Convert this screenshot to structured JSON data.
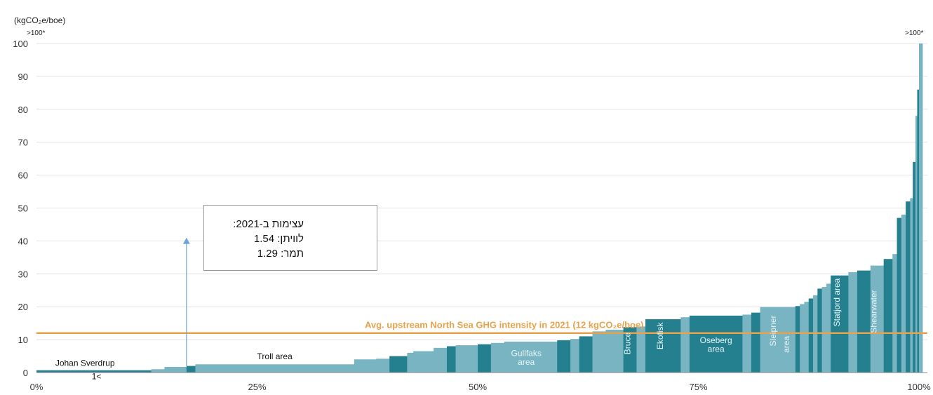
{
  "chart_data": {
    "type": "bar",
    "subtype": "cumulative-production-curve",
    "ylabel": "(kgCO₂e/boe)",
    "ylim": [
      0,
      100
    ],
    "y_ticks": [
      "0",
      "10",
      "20",
      "30",
      "40",
      "50",
      "60",
      "70",
      "80",
      "90",
      "100"
    ],
    "xlim": [
      0,
      100
    ],
    "x_ticks": [
      {
        "value": 0,
        "label": "0%"
      },
      {
        "value": 25,
        "label": "25%"
      },
      {
        "value": 50,
        "label": "50%"
      },
      {
        "value": 75,
        "label": "75%"
      },
      {
        "value": 100,
        "label": "100%"
      }
    ],
    "grid": true,
    "colors": {
      "light": "#79b4c3",
      "dark": "#24808f",
      "avg_line": "#e8a24a",
      "grid": "#e4e4e4",
      "arrow": "#6fa5d6"
    },
    "bars": [
      {
        "x0": 0.0,
        "x1": 13.0,
        "y": 0.7,
        "shade": "dark"
      },
      {
        "x0": 13.0,
        "x1": 14.5,
        "y": 1.0,
        "shade": "light"
      },
      {
        "x0": 14.5,
        "x1": 17.0,
        "y": 1.7,
        "shade": "light"
      },
      {
        "x0": 17.0,
        "x1": 18.0,
        "y": 2.0,
        "shade": "dark"
      },
      {
        "x0": 18.0,
        "x1": 36.0,
        "y": 2.5,
        "shade": "light"
      },
      {
        "x0": 36.0,
        "x1": 38.5,
        "y": 4.0,
        "shade": "light"
      },
      {
        "x0": 38.5,
        "x1": 40.0,
        "y": 4.2,
        "shade": "light"
      },
      {
        "x0": 40.0,
        "x1": 42.0,
        "y": 5.0,
        "shade": "dark"
      },
      {
        "x0": 42.0,
        "x1": 42.7,
        "y": 6.0,
        "shade": "light"
      },
      {
        "x0": 42.7,
        "x1": 45.0,
        "y": 6.5,
        "shade": "light"
      },
      {
        "x0": 45.0,
        "x1": 46.5,
        "y": 7.5,
        "shade": "light"
      },
      {
        "x0": 46.5,
        "x1": 47.5,
        "y": 8.0,
        "shade": "dark"
      },
      {
        "x0": 47.5,
        "x1": 50.0,
        "y": 8.3,
        "shade": "light"
      },
      {
        "x0": 50.0,
        "x1": 51.5,
        "y": 8.6,
        "shade": "dark"
      },
      {
        "x0": 51.5,
        "x1": 53.0,
        "y": 9.0,
        "shade": "light"
      },
      {
        "x0": 53.0,
        "x1": 59.0,
        "y": 9.4,
        "shade": "light"
      },
      {
        "x0": 59.0,
        "x1": 60.5,
        "y": 9.8,
        "shade": "dark"
      },
      {
        "x0": 60.5,
        "x1": 61.5,
        "y": 10.2,
        "shade": "light"
      },
      {
        "x0": 61.5,
        "x1": 63.0,
        "y": 11.0,
        "shade": "dark"
      },
      {
        "x0": 63.0,
        "x1": 64.5,
        "y": 12.5,
        "shade": "light"
      },
      {
        "x0": 64.5,
        "x1": 66.5,
        "y": 13.0,
        "shade": "light"
      },
      {
        "x0": 66.5,
        "x1": 68.0,
        "y": 13.8,
        "shade": "dark"
      },
      {
        "x0": 68.0,
        "x1": 69.0,
        "y": 14.0,
        "shade": "light"
      },
      {
        "x0": 69.0,
        "x1": 73.0,
        "y": 16.2,
        "shade": "dark"
      },
      {
        "x0": 73.0,
        "x1": 74.0,
        "y": 16.8,
        "shade": "light"
      },
      {
        "x0": 74.0,
        "x1": 80.0,
        "y": 17.3,
        "shade": "dark"
      },
      {
        "x0": 80.0,
        "x1": 81.0,
        "y": 17.6,
        "shade": "light"
      },
      {
        "x0": 81.0,
        "x1": 82.0,
        "y": 18.2,
        "shade": "dark"
      },
      {
        "x0": 82.0,
        "x1": 86.0,
        "y": 19.9,
        "shade": "light"
      },
      {
        "x0": 86.0,
        "x1": 86.5,
        "y": 20.2,
        "shade": "dark"
      },
      {
        "x0": 86.5,
        "x1": 87.0,
        "y": 20.8,
        "shade": "light"
      },
      {
        "x0": 87.0,
        "x1": 87.5,
        "y": 21.5,
        "shade": "light"
      },
      {
        "x0": 87.5,
        "x1": 88.0,
        "y": 22.5,
        "shade": "dark"
      },
      {
        "x0": 88.0,
        "x1": 88.5,
        "y": 23.5,
        "shade": "light"
      },
      {
        "x0": 88.5,
        "x1": 89.0,
        "y": 25.5,
        "shade": "dark"
      },
      {
        "x0": 89.0,
        "x1": 89.5,
        "y": 26.0,
        "shade": "light"
      },
      {
        "x0": 89.5,
        "x1": 90.0,
        "y": 27.0,
        "shade": "light"
      },
      {
        "x0": 90.0,
        "x1": 92.0,
        "y": 29.5,
        "shade": "dark"
      },
      {
        "x0": 92.0,
        "x1": 93.0,
        "y": 30.5,
        "shade": "light"
      },
      {
        "x0": 93.0,
        "x1": 94.5,
        "y": 31.0,
        "shade": "dark"
      },
      {
        "x0": 94.5,
        "x1": 96.0,
        "y": 32.5,
        "shade": "light"
      },
      {
        "x0": 96.0,
        "x1": 97.0,
        "y": 34.5,
        "shade": "dark"
      },
      {
        "x0": 97.0,
        "x1": 97.5,
        "y": 36.0,
        "shade": "light"
      },
      {
        "x0": 97.5,
        "x1": 98.0,
        "y": 47.0,
        "shade": "dark"
      },
      {
        "x0": 98.0,
        "x1": 98.5,
        "y": 48.0,
        "shade": "light"
      },
      {
        "x0": 98.5,
        "x1": 99.0,
        "y": 52.0,
        "shade": "dark"
      },
      {
        "x0": 99.0,
        "x1": 99.3,
        "y": 53.0,
        "shade": "light"
      },
      {
        "x0": 99.3,
        "x1": 99.6,
        "y": 64.0,
        "shade": "dark"
      },
      {
        "x0": 99.6,
        "x1": 99.8,
        "y": 78.0,
        "shade": "light"
      },
      {
        "x0": 99.8,
        "x1": 100.0,
        "y": 86.0,
        "shade": "dark"
      },
      {
        "x0": 100.0,
        "x1": 100.4,
        "y": 100.0,
        "shade": "light"
      }
    ],
    "reference_line": {
      "y": 12,
      "label": "Avg. upstream North Sea GHG intensity in 2021 (12 kgCO₂e/boe)"
    },
    "overflow_labels": {
      "left": ">100*",
      "right": ">100*"
    },
    "field_labels": [
      {
        "label": "Johan Sverdrup",
        "x": 5.5,
        "y": 2.0,
        "rotate": false,
        "shade": "dark"
      },
      {
        "label": "1<",
        "x": 6.8,
        "y": -2.0,
        "rotate": false,
        "shade": "dark"
      },
      {
        "label": "Troll area",
        "x": 27.0,
        "y": 4.0,
        "rotate": false,
        "shade": "dark"
      },
      {
        "label": "Gullfaks",
        "x": 55.5,
        "y": 5.0,
        "rotate": false,
        "shade": "light"
      },
      {
        "label": "area",
        "x": 55.5,
        "y": 2.3,
        "rotate": false,
        "shade": "light"
      },
      {
        "label": "Bruce",
        "x": 67.3,
        "y": 5.5,
        "rotate": true,
        "shade": "light"
      },
      {
        "label": "Ekofisk",
        "x": 71.0,
        "y": 7.0,
        "rotate": true,
        "shade": "light"
      },
      {
        "label": "Oseberg",
        "x": 77.0,
        "y": 9.0,
        "rotate": false,
        "shade": "light"
      },
      {
        "label": "area",
        "x": 77.0,
        "y": 6.3,
        "rotate": false,
        "shade": "light"
      },
      {
        "label": "Sleipner",
        "x": 83.8,
        "y": 8.0,
        "rotate": true,
        "shade": "light"
      },
      {
        "label": "area",
        "x": 85.3,
        "y": 6.0,
        "rotate": true,
        "shade": "light"
      },
      {
        "label": "Statjord area",
        "x": 91.0,
        "y": 14.0,
        "rotate": true,
        "shade": "light"
      },
      {
        "label": "Shearwater",
        "x": 95.2,
        "y": 12.0,
        "rotate": true,
        "shade": "light"
      }
    ],
    "annotation": {
      "lines": [
        "עצימות ב-2021:",
        "לוויתן: 1.54",
        "תמר: 1.29"
      ],
      "arrow": {
        "x": 17.0,
        "y_from": 2.0,
        "y_to": 41.0
      }
    }
  }
}
